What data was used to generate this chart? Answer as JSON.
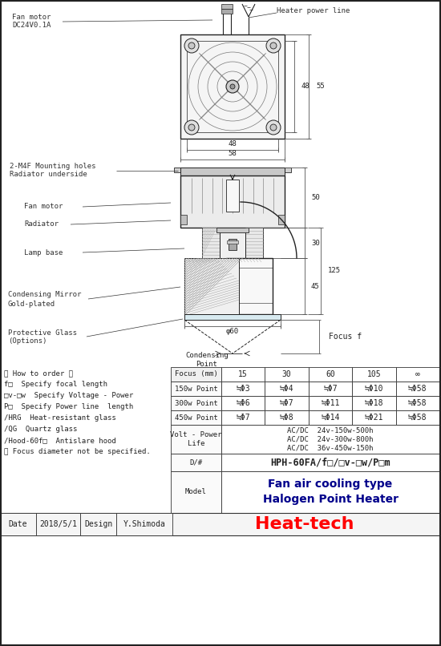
{
  "bg_color": "#ffffff",
  "line_color": "#222222",
  "table_data": {
    "focus_cols": [
      "Focus (mm)",
      "15",
      "30",
      "60",
      "105",
      "∞"
    ],
    "rows": [
      [
        "150w Point",
        "≒Φ3",
        "≒Φ4",
        "≒Φ7",
        "≒Φ10",
        "≒Φ58"
      ],
      [
        "300w Point",
        "≒Φ6",
        "≒Φ7",
        "≒Φ11",
        "≒Φ18",
        "≒Φ58"
      ],
      [
        "450w Point",
        "≒Φ7",
        "≒Φ8",
        "≒Φ14",
        "≒Φ21",
        "≒Φ58"
      ]
    ],
    "volt_power_life": [
      "AC/DC  24v-150w-500h",
      "AC/DC  24v-300w-800h",
      "AC/DC  36v-450w-150h"
    ],
    "d_hash": "HPH-60FA/f□/□v-□w/P□m",
    "model": [
      "Fan air cooling type",
      "Halogen Point Heater"
    ]
  },
  "how_to_order": [
    "【 How to order 】",
    "f□  Specify focal length",
    "□v-□w  Specify Voltage - Power",
    "P□  Specify Power line  length",
    "/HRG  Heat-resistant glass",
    "/QG  Quartz glass",
    "/Hood-60f□  Antislare hood",
    "※ Focus diameter not be specified."
  ],
  "date": "2018/5/1",
  "design": "Y.Shimoda",
  "brand": "Heat-tech",
  "brand_color": "#ff0000",
  "model_color": "#00008B"
}
